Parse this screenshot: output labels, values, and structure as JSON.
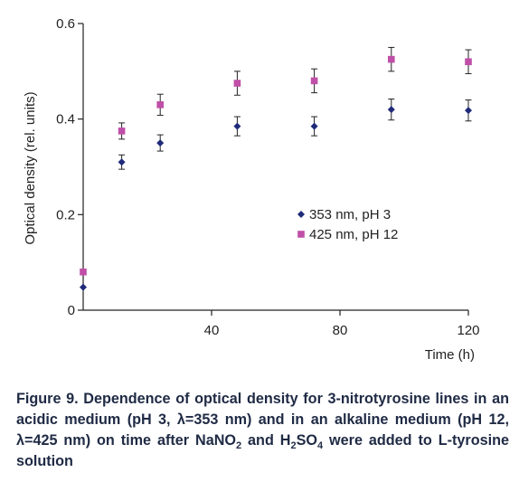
{
  "chart_data": {
    "type": "scatter",
    "title": "",
    "xlabel": "Time (h)",
    "ylabel": "Optical density (rel. units)",
    "xlim": [
      0,
      120
    ],
    "ylim": [
      0,
      0.6
    ],
    "xticks": [
      40,
      80,
      120
    ],
    "xtick_labels": [
      "40",
      "80",
      "120"
    ],
    "yticks": [
      0,
      0.2,
      0.4,
      0.6
    ],
    "ytick_labels": [
      "0",
      "0.2",
      "0.4",
      "0.6"
    ],
    "grid": false,
    "legend_position": "center-right",
    "series": [
      {
        "name": "353 nm, pH 3",
        "color": "#1f2a7a",
        "marker": "diamond",
        "x": [
          0,
          12,
          24,
          48,
          72,
          96,
          120
        ],
        "y": [
          0.048,
          0.31,
          0.35,
          0.385,
          0.385,
          0.42,
          0.418
        ],
        "error": [
          0,
          0.015,
          0.017,
          0.02,
          0.02,
          0.022,
          0.022
        ]
      },
      {
        "name": "425 nm, pH 12",
        "color": "#c04fa8",
        "marker": "square",
        "x": [
          0,
          12,
          24,
          48,
          72,
          96,
          120
        ],
        "y": [
          0.08,
          0.375,
          0.43,
          0.475,
          0.48,
          0.525,
          0.52
        ],
        "error": [
          0,
          0.017,
          0.022,
          0.025,
          0.025,
          0.025,
          0.025
        ]
      }
    ]
  },
  "caption": {
    "part1": "Figure 9. Dependence of optical density for 3-nitrotyrosine lines in an acidic medium (pH 3, λ=353 nm) and in an alkaline medium (pH 12, λ=425 nm) on time after NaNO",
    "sub1": "2",
    "part2": " and H",
    "sub2": "2",
    "part3": "SO",
    "sub3": "4",
    "part4": " were added to L-tyrosine solution"
  }
}
